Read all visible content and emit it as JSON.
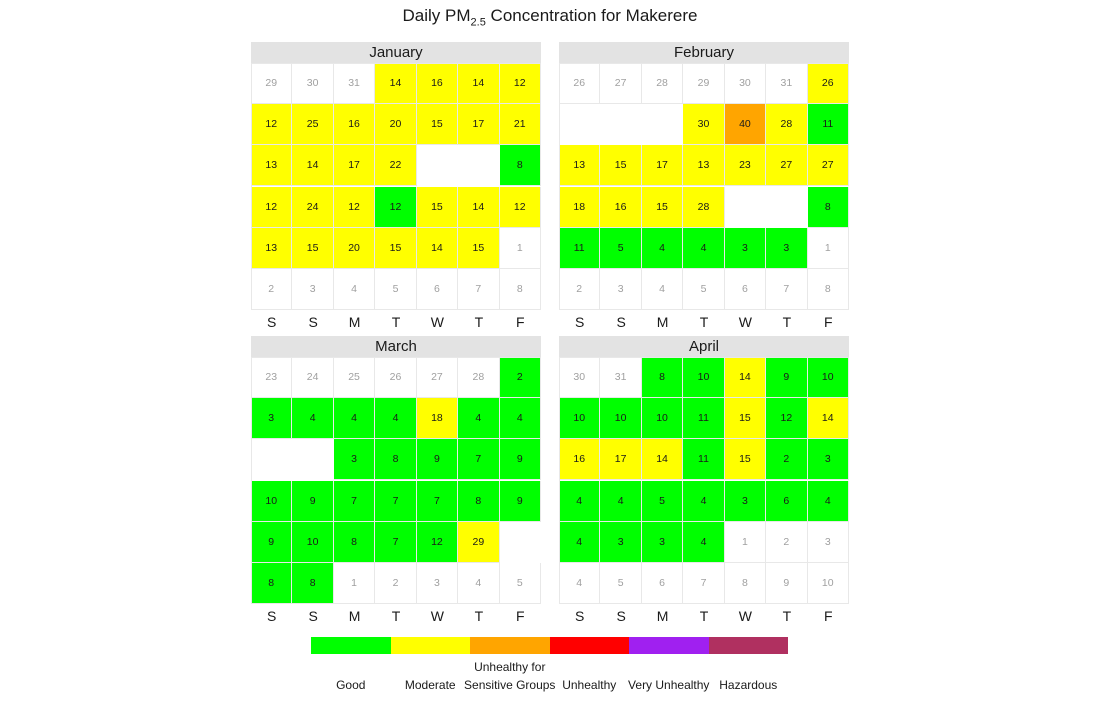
{
  "title": {
    "main": "Daily PM",
    "sub": "2.5",
    "rest": " Concentration for Makerere"
  },
  "day_of_week_labels": [
    "S",
    "S",
    "M",
    "T",
    "W",
    "T",
    "F"
  ],
  "colors": {
    "Good": "#00ff00",
    "Moderate": "#ffff00",
    "Unhealthy for Sensitive Groups": "#ffa500",
    "Unhealthy": "#ff0000",
    "Very Unhealthy": "#a020f0",
    "Hazardous": "#b03060",
    "filler_text": "#a0a0a0",
    "value_text": "#1a1a1a"
  },
  "legend": [
    {
      "key": "Good",
      "line1": "",
      "line2": "Good"
    },
    {
      "key": "Moderate",
      "line1": "",
      "line2": "Moderate"
    },
    {
      "key": "Unhealthy for Sensitive Groups",
      "line1": "Unhealthy for",
      "line2": "Sensitive Groups"
    },
    {
      "key": "Unhealthy",
      "line1": "",
      "line2": "Unhealthy"
    },
    {
      "key": "Very Unhealthy",
      "line1": "",
      "line2": "Very Unhealthy"
    },
    {
      "key": "Hazardous",
      "line1": "",
      "line2": "Hazardous"
    }
  ],
  "chart_data": {
    "type": "heatmap",
    "title": "Daily PM2.5 Concentration for Makerere",
    "columns": [
      "S",
      "S",
      "M",
      "T",
      "W",
      "T",
      "F"
    ],
    "months": [
      {
        "name": "January",
        "rows": [
          [
            {
              "v": 29,
              "f": 1
            },
            {
              "v": 30,
              "f": 1
            },
            {
              "v": 31,
              "f": 1
            },
            {
              "v": 14,
              "c": "Moderate"
            },
            {
              "v": 16,
              "c": "Moderate"
            },
            {
              "v": 14,
              "c": "Moderate"
            },
            {
              "v": 12,
              "c": "Moderate"
            }
          ],
          [
            {
              "v": 12,
              "c": "Moderate"
            },
            {
              "v": 25,
              "c": "Moderate"
            },
            {
              "v": 16,
              "c": "Moderate"
            },
            {
              "v": 20,
              "c": "Moderate"
            },
            {
              "v": 15,
              "c": "Moderate"
            },
            {
              "v": 17,
              "c": "Moderate"
            },
            {
              "v": 21,
              "c": "Moderate"
            }
          ],
          [
            {
              "v": 13,
              "c": "Moderate"
            },
            {
              "v": 14,
              "c": "Moderate"
            },
            {
              "v": 17,
              "c": "Moderate"
            },
            {
              "v": 22,
              "c": "Moderate"
            },
            {
              "v": null
            },
            {
              "v": null
            },
            {
              "v": 8,
              "c": "Good"
            }
          ],
          [
            {
              "v": 12,
              "c": "Moderate"
            },
            {
              "v": 24,
              "c": "Moderate"
            },
            {
              "v": 12,
              "c": "Moderate"
            },
            {
              "v": 12,
              "c": "Good"
            },
            {
              "v": 15,
              "c": "Moderate"
            },
            {
              "v": 14,
              "c": "Moderate"
            },
            {
              "v": 12,
              "c": "Moderate"
            }
          ],
          [
            {
              "v": 13,
              "c": "Moderate"
            },
            {
              "v": 15,
              "c": "Moderate"
            },
            {
              "v": 20,
              "c": "Moderate"
            },
            {
              "v": 15,
              "c": "Moderate"
            },
            {
              "v": 14,
              "c": "Moderate"
            },
            {
              "v": 15,
              "c": "Moderate"
            },
            {
              "v": 1,
              "f": 1
            }
          ],
          [
            {
              "v": 2,
              "f": 1
            },
            {
              "v": 3,
              "f": 1
            },
            {
              "v": 4,
              "f": 1
            },
            {
              "v": 5,
              "f": 1
            },
            {
              "v": 6,
              "f": 1
            },
            {
              "v": 7,
              "f": 1
            },
            {
              "v": 8,
              "f": 1
            }
          ]
        ]
      },
      {
        "name": "February",
        "rows": [
          [
            {
              "v": 26,
              "f": 1
            },
            {
              "v": 27,
              "f": 1
            },
            {
              "v": 28,
              "f": 1
            },
            {
              "v": 29,
              "f": 1
            },
            {
              "v": 30,
              "f": 1
            },
            {
              "v": 31,
              "f": 1
            },
            {
              "v": 26,
              "c": "Moderate"
            }
          ],
          [
            {
              "v": null
            },
            {
              "v": null
            },
            {
              "v": null
            },
            {
              "v": 30,
              "c": "Moderate"
            },
            {
              "v": 40,
              "c": "Unhealthy for Sensitive Groups"
            },
            {
              "v": 28,
              "c": "Moderate"
            },
            {
              "v": 11,
              "c": "Good"
            }
          ],
          [
            {
              "v": 13,
              "c": "Moderate"
            },
            {
              "v": 15,
              "c": "Moderate"
            },
            {
              "v": 17,
              "c": "Moderate"
            },
            {
              "v": 13,
              "c": "Moderate"
            },
            {
              "v": 23,
              "c": "Moderate"
            },
            {
              "v": 27,
              "c": "Moderate"
            },
            {
              "v": 27,
              "c": "Moderate"
            }
          ],
          [
            {
              "v": 18,
              "c": "Moderate"
            },
            {
              "v": 16,
              "c": "Moderate"
            },
            {
              "v": 15,
              "c": "Moderate"
            },
            {
              "v": 28,
              "c": "Moderate"
            },
            {
              "v": null
            },
            {
              "v": null
            },
            {
              "v": 8,
              "c": "Good"
            }
          ],
          [
            {
              "v": 11,
              "c": "Good"
            },
            {
              "v": 5,
              "c": "Good"
            },
            {
              "v": 4,
              "c": "Good"
            },
            {
              "v": 4,
              "c": "Good"
            },
            {
              "v": 3,
              "c": "Good"
            },
            {
              "v": 3,
              "c": "Good"
            },
            {
              "v": 1,
              "f": 1
            }
          ],
          [
            {
              "v": 2,
              "f": 1
            },
            {
              "v": 3,
              "f": 1
            },
            {
              "v": 4,
              "f": 1
            },
            {
              "v": 5,
              "f": 1
            },
            {
              "v": 6,
              "f": 1
            },
            {
              "v": 7,
              "f": 1
            },
            {
              "v": 8,
              "f": 1
            }
          ]
        ]
      },
      {
        "name": "March",
        "rows": [
          [
            {
              "v": 23,
              "f": 1
            },
            {
              "v": 24,
              "f": 1
            },
            {
              "v": 25,
              "f": 1
            },
            {
              "v": 26,
              "f": 1
            },
            {
              "v": 27,
              "f": 1
            },
            {
              "v": 28,
              "f": 1
            },
            {
              "v": 2,
              "c": "Good"
            }
          ],
          [
            {
              "v": 3,
              "c": "Good"
            },
            {
              "v": 4,
              "c": "Good"
            },
            {
              "v": 4,
              "c": "Good"
            },
            {
              "v": 4,
              "c": "Good"
            },
            {
              "v": 18,
              "c": "Moderate"
            },
            {
              "v": 4,
              "c": "Good"
            },
            {
              "v": 4,
              "c": "Good"
            }
          ],
          [
            {
              "v": null
            },
            {
              "v": null
            },
            {
              "v": 3,
              "c": "Good"
            },
            {
              "v": 8,
              "c": "Good"
            },
            {
              "v": 9,
              "c": "Good"
            },
            {
              "v": 7,
              "c": "Good"
            },
            {
              "v": 9,
              "c": "Good"
            }
          ],
          [
            {
              "v": 10,
              "c": "Good"
            },
            {
              "v": 9,
              "c": "Good"
            },
            {
              "v": 7,
              "c": "Good"
            },
            {
              "v": 7,
              "c": "Good"
            },
            {
              "v": 7,
              "c": "Good"
            },
            {
              "v": 8,
              "c": "Good"
            },
            {
              "v": 9,
              "c": "Good"
            }
          ],
          [
            {
              "v": 9,
              "c": "Good"
            },
            {
              "v": 10,
              "c": "Good"
            },
            {
              "v": 8,
              "c": "Good"
            },
            {
              "v": 7,
              "c": "Good"
            },
            {
              "v": 12,
              "c": "Good"
            },
            {
              "v": 29,
              "c": "Moderate"
            },
            {
              "v": null
            }
          ],
          [
            {
              "v": 8,
              "c": "Good"
            },
            {
              "v": 8,
              "c": "Good"
            },
            {
              "v": 1,
              "f": 1
            },
            {
              "v": 2,
              "f": 1
            },
            {
              "v": 3,
              "f": 1
            },
            {
              "v": 4,
              "f": 1
            },
            {
              "v": 5,
              "f": 1
            }
          ]
        ]
      },
      {
        "name": "April",
        "rows": [
          [
            {
              "v": 30,
              "f": 1
            },
            {
              "v": 31,
              "f": 1
            },
            {
              "v": 8,
              "c": "Good"
            },
            {
              "v": 10,
              "c": "Good"
            },
            {
              "v": 14,
              "c": "Moderate"
            },
            {
              "v": 9,
              "c": "Good"
            },
            {
              "v": 10,
              "c": "Good"
            }
          ],
          [
            {
              "v": 10,
              "c": "Good"
            },
            {
              "v": 10,
              "c": "Good"
            },
            {
              "v": 10,
              "c": "Good"
            },
            {
              "v": 11,
              "c": "Good"
            },
            {
              "v": 15,
              "c": "Moderate"
            },
            {
              "v": 12,
              "c": "Good"
            },
            {
              "v": 14,
              "c": "Moderate"
            }
          ],
          [
            {
              "v": 16,
              "c": "Moderate"
            },
            {
              "v": 17,
              "c": "Moderate"
            },
            {
              "v": 14,
              "c": "Moderate"
            },
            {
              "v": 11,
              "c": "Good"
            },
            {
              "v": 15,
              "c": "Moderate"
            },
            {
              "v": 2,
              "c": "Good"
            },
            {
              "v": 3,
              "c": "Good"
            }
          ],
          [
            {
              "v": 4,
              "c": "Good"
            },
            {
              "v": 4,
              "c": "Good"
            },
            {
              "v": 5,
              "c": "Good"
            },
            {
              "v": 4,
              "c": "Good"
            },
            {
              "v": 3,
              "c": "Good"
            },
            {
              "v": 6,
              "c": "Good"
            },
            {
              "v": 4,
              "c": "Good"
            }
          ],
          [
            {
              "v": 4,
              "c": "Good"
            },
            {
              "v": 3,
              "c": "Good"
            },
            {
              "v": 3,
              "c": "Good"
            },
            {
              "v": 4,
              "c": "Good"
            },
            {
              "v": 1,
              "f": 1
            },
            {
              "v": 2,
              "f": 1
            },
            {
              "v": 3,
              "f": 1
            }
          ],
          [
            {
              "v": 4,
              "f": 1
            },
            {
              "v": 5,
              "f": 1
            },
            {
              "v": 6,
              "f": 1
            },
            {
              "v": 7,
              "f": 1
            },
            {
              "v": 8,
              "f": 1
            },
            {
              "v": 9,
              "f": 1
            },
            {
              "v": 10,
              "f": 1
            }
          ]
        ]
      }
    ]
  }
}
